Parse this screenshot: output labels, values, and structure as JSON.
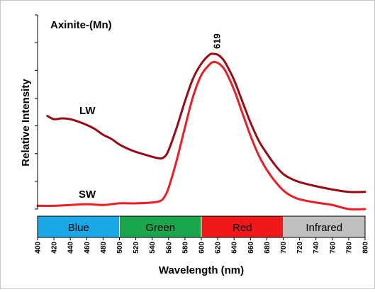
{
  "chart_data": {
    "type": "line",
    "title": "Axinite-(Mn)",
    "xlabel": "Wavelength (nm)",
    "ylabel": "Relative Intensity",
    "xlim": [
      400,
      800
    ],
    "ylim": [
      0,
      1
    ],
    "x_ticks": [
      400,
      420,
      440,
      460,
      480,
      500,
      520,
      540,
      560,
      580,
      600,
      620,
      640,
      660,
      680,
      700,
      720,
      740,
      760,
      780,
      800
    ],
    "peak_label": "619",
    "color_bands": [
      {
        "label": "Blue",
        "from": 400,
        "to": 500,
        "color": "#1aa7e8"
      },
      {
        "label": "Green",
        "from": 500,
        "to": 600,
        "color": "#1aa64a"
      },
      {
        "label": "Red",
        "from": 600,
        "to": 700,
        "color": "#f01818"
      },
      {
        "label": "Infrared",
        "from": 700,
        "to": 800,
        "color": "#bfbfbf"
      }
    ],
    "series": [
      {
        "name": "LW",
        "color": "#9b0a14",
        "x": [
          412,
          420,
          430,
          440,
          450,
          460,
          470,
          480,
          490,
          500,
          510,
          520,
          530,
          540,
          550,
          555,
          560,
          570,
          580,
          590,
          600,
          610,
          615,
          620,
          625,
          630,
          640,
          650,
          660,
          670,
          680,
          690,
          700,
          710,
          720,
          740,
          760,
          780,
          800
        ],
        "y": [
          0.57,
          0.55,
          0.555,
          0.55,
          0.535,
          0.515,
          0.49,
          0.455,
          0.43,
          0.395,
          0.37,
          0.35,
          0.335,
          0.32,
          0.31,
          0.32,
          0.36,
          0.5,
          0.66,
          0.8,
          0.89,
          0.945,
          0.95,
          0.945,
          0.925,
          0.89,
          0.79,
          0.66,
          0.53,
          0.42,
          0.34,
          0.27,
          0.215,
          0.185,
          0.165,
          0.14,
          0.12,
          0.105,
          0.105
        ]
      },
      {
        "name": "SW",
        "color": "#ee1c24",
        "x": [
          400,
          420,
          440,
          460,
          480,
          500,
          520,
          540,
          550,
          555,
          560,
          570,
          580,
          590,
          600,
          610,
          615,
          620,
          625,
          630,
          640,
          650,
          660,
          670,
          680,
          690,
          700,
          710,
          720,
          740,
          760,
          780,
          800
        ],
        "y": [
          0.02,
          0.02,
          0.025,
          0.03,
          0.025,
          0.035,
          0.035,
          0.04,
          0.05,
          0.075,
          0.13,
          0.3,
          0.5,
          0.69,
          0.82,
          0.885,
          0.9,
          0.895,
          0.875,
          0.84,
          0.73,
          0.59,
          0.45,
          0.33,
          0.24,
          0.17,
          0.115,
          0.08,
          0.06,
          0.04,
          0.025,
          0.0,
          0.0
        ]
      }
    ]
  }
}
